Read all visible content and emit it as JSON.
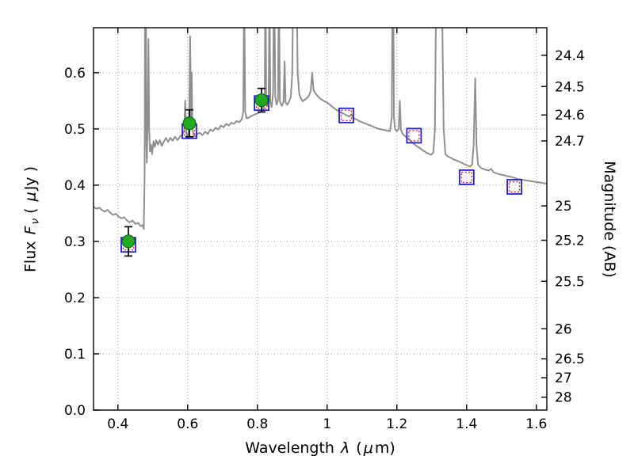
{
  "figure": {
    "xlabel_parts": {
      "t1": "Wavelength ",
      "lambda": "λ",
      "t2": " (",
      "mu": "μ",
      "t3": "m)"
    },
    "ylabel_left_parts": {
      "t1": "Flux ",
      "F": "F",
      "nu": "ν",
      "t2": " ( ",
      "mu": "μ",
      "t3": "Jy )"
    },
    "ylabel_right": "Magnitude (AB)"
  },
  "chart_data": {
    "type": "line",
    "title": "",
    "xlabel": "Wavelength λ (μm)",
    "ylabel": "Flux Fν ( μJy )",
    "ylabel_right": "Magnitude (AB)",
    "xlim": [
      0.33,
      1.63
    ],
    "ylim": [
      0.0,
      0.68
    ],
    "x_ticks": [
      0.4,
      0.6,
      0.8,
      1.0,
      1.2,
      1.4,
      1.6
    ],
    "x_tick_labels": [
      "0.4",
      "0.6",
      "0.8",
      "1",
      "1.2",
      "1.4",
      "1.6"
    ],
    "y_ticks": [
      0.0,
      0.1,
      0.2,
      0.3,
      0.4,
      0.5,
      0.6
    ],
    "y_tick_labels": [
      "0.0",
      "0.1",
      "0.2",
      "0.3",
      "0.4",
      "0.5",
      "0.6"
    ],
    "grid": true,
    "legend": "none",
    "right_axis": {
      "label": "Magnitude (AB)",
      "ab_zeropoint_ujy": 23.9,
      "tick_values": [
        24.4,
        24.5,
        24.6,
        24.7,
        25,
        25.2,
        25.5,
        26,
        26.5,
        27,
        28
      ],
      "tick_labels": [
        "24.4",
        "24.5",
        "24.6",
        "24.7",
        "25",
        "25.2",
        "25.5",
        "26",
        "26.5",
        "27",
        "28"
      ]
    },
    "colors": {
      "spectrum": "#8f8f8f",
      "observed": "#1faa1f",
      "observed_edge": "#0a5c0a",
      "errorbar": "#000000",
      "square_outer": "#2222cc",
      "square_inner": "#e03333",
      "grid": "#9a9a9a",
      "axis": "#000000"
    },
    "series": [
      {
        "name": "galaxy template spectrum",
        "type": "line",
        "points": [
          [
            0.33,
            0.362
          ],
          [
            0.338,
            0.358
          ],
          [
            0.346,
            0.36
          ],
          [
            0.354,
            0.356
          ],
          [
            0.362,
            0.353
          ],
          [
            0.37,
            0.356
          ],
          [
            0.378,
            0.351
          ],
          [
            0.386,
            0.347
          ],
          [
            0.394,
            0.349
          ],
          [
            0.402,
            0.344
          ],
          [
            0.41,
            0.341
          ],
          [
            0.418,
            0.343
          ],
          [
            0.426,
            0.337
          ],
          [
            0.434,
            0.334
          ],
          [
            0.442,
            0.337
          ],
          [
            0.45,
            0.331
          ],
          [
            0.458,
            0.333
          ],
          [
            0.465,
            0.327
          ],
          [
            0.47,
            0.329
          ],
          [
            0.474,
            0.322
          ],
          [
            0.4765,
            0.42
          ],
          [
            0.478,
            0.78
          ],
          [
            0.48,
            0.78
          ],
          [
            0.4815,
            0.47
          ],
          [
            0.483,
            0.44
          ],
          [
            0.4855,
            0.52
          ],
          [
            0.4875,
            0.66
          ],
          [
            0.4895,
            0.5
          ],
          [
            0.492,
            0.46
          ],
          [
            0.495,
            0.472
          ],
          [
            0.498,
            0.455
          ],
          [
            0.502,
            0.478
          ],
          [
            0.506,
            0.468
          ],
          [
            0.51,
            0.48
          ],
          [
            0.515,
            0.472
          ],
          [
            0.52,
            0.48
          ],
          [
            0.526,
            0.47
          ],
          [
            0.532,
            0.478
          ],
          [
            0.538,
            0.484
          ],
          [
            0.544,
            0.477
          ],
          [
            0.55,
            0.484
          ],
          [
            0.557,
            0.479
          ],
          [
            0.564,
            0.486
          ],
          [
            0.571,
            0.48
          ],
          [
            0.578,
            0.486
          ],
          [
            0.585,
            0.49
          ],
          [
            0.59,
            0.497
          ],
          [
            0.593,
            0.55
          ],
          [
            0.596,
            0.492
          ],
          [
            0.6,
            0.488
          ],
          [
            0.604,
            0.5
          ],
          [
            0.607,
            0.665
          ],
          [
            0.6095,
            0.52
          ],
          [
            0.6115,
            0.6
          ],
          [
            0.6135,
            0.5
          ],
          [
            0.617,
            0.49
          ],
          [
            0.622,
            0.487
          ],
          [
            0.628,
            0.491
          ],
          [
            0.635,
            0.493
          ],
          [
            0.642,
            0.489
          ],
          [
            0.65,
            0.495
          ],
          [
            0.658,
            0.491
          ],
          [
            0.665,
            0.499
          ],
          [
            0.672,
            0.496
          ],
          [
            0.68,
            0.502
          ],
          [
            0.688,
            0.499
          ],
          [
            0.695,
            0.506
          ],
          [
            0.703,
            0.503
          ],
          [
            0.71,
            0.509
          ],
          [
            0.718,
            0.506
          ],
          [
            0.725,
            0.511
          ],
          [
            0.733,
            0.509
          ],
          [
            0.74,
            0.514
          ],
          [
            0.748,
            0.512
          ],
          [
            0.755,
            0.517
          ],
          [
            0.7595,
            0.53
          ],
          [
            0.762,
            0.76
          ],
          [
            0.765,
            0.53
          ],
          [
            0.769,
            0.519
          ],
          [
            0.776,
            0.52
          ],
          [
            0.783,
            0.523
          ],
          [
            0.79,
            0.525
          ],
          [
            0.798,
            0.527
          ],
          [
            0.805,
            0.529
          ],
          [
            0.812,
            0.531
          ],
          [
            0.818,
            0.534
          ],
          [
            0.8212,
            0.56
          ],
          [
            0.823,
            0.82
          ],
          [
            0.8253,
            0.56
          ],
          [
            0.828,
            0.541
          ],
          [
            0.832,
            0.548
          ],
          [
            0.8346,
            0.74
          ],
          [
            0.837,
            0.548
          ],
          [
            0.841,
            0.539
          ],
          [
            0.845,
            0.565
          ],
          [
            0.848,
            0.82
          ],
          [
            0.8512,
            0.558
          ],
          [
            0.855,
            0.543
          ],
          [
            0.859,
            0.551
          ],
          [
            0.8617,
            0.77
          ],
          [
            0.8645,
            0.549
          ],
          [
            0.87,
            0.541
          ],
          [
            0.875,
            0.548
          ],
          [
            0.878,
            0.62
          ],
          [
            0.881,
            0.547
          ],
          [
            0.886,
            0.543
          ],
          [
            0.891,
            0.549
          ],
          [
            0.896,
            0.557
          ],
          [
            0.9,
            0.6
          ],
          [
            0.9045,
            0.87
          ],
          [
            0.908,
            0.7
          ],
          [
            0.9115,
            0.82
          ],
          [
            0.9155,
            0.6
          ],
          [
            0.92,
            0.562
          ],
          [
            0.925,
            0.554
          ],
          [
            0.93,
            0.549
          ],
          [
            0.936,
            0.552
          ],
          [
            0.942,
            0.555
          ],
          [
            0.948,
            0.559
          ],
          [
            0.953,
            0.568
          ],
          [
            0.957,
            0.6
          ],
          [
            0.961,
            0.569
          ],
          [
            0.966,
            0.564
          ],
          [
            0.972,
            0.559
          ],
          [
            0.978,
            0.555
          ],
          [
            0.985,
            0.552
          ],
          [
            0.992,
            0.549
          ],
          [
            1.0,
            0.547
          ],
          [
            1.008,
            0.543
          ],
          [
            1.016,
            0.539
          ],
          [
            1.024,
            0.535
          ],
          [
            1.032,
            0.532
          ],
          [
            1.04,
            0.529
          ],
          [
            1.048,
            0.527
          ],
          [
            1.056,
            0.524
          ],
          [
            1.064,
            0.522
          ],
          [
            1.07,
            0.526
          ],
          [
            1.076,
            0.519
          ],
          [
            1.084,
            0.517
          ],
          [
            1.092,
            0.514
          ],
          [
            1.1,
            0.512
          ],
          [
            1.108,
            0.51
          ],
          [
            1.116,
            0.508
          ],
          [
            1.124,
            0.506
          ],
          [
            1.132,
            0.504
          ],
          [
            1.14,
            0.502
          ],
          [
            1.148,
            0.5
          ],
          [
            1.156,
            0.499
          ],
          [
            1.164,
            0.498
          ],
          [
            1.172,
            0.497
          ],
          [
            1.18,
            0.496
          ],
          [
            1.1855,
            0.52
          ],
          [
            1.1885,
            0.9
          ],
          [
            1.1915,
            0.52
          ],
          [
            1.195,
            0.499
          ],
          [
            1.2,
            0.496
          ],
          [
            1.2055,
            0.5
          ],
          [
            1.2085,
            0.55
          ],
          [
            1.2115,
            0.498
          ],
          [
            1.218,
            0.49
          ],
          [
            1.226,
            0.486
          ],
          [
            1.234,
            0.482
          ],
          [
            1.242,
            0.477
          ],
          [
            1.25,
            0.473
          ],
          [
            1.258,
            0.469
          ],
          [
            1.266,
            0.466
          ],
          [
            1.274,
            0.462
          ],
          [
            1.282,
            0.459
          ],
          [
            1.29,
            0.456
          ],
          [
            1.298,
            0.454
          ],
          [
            1.3045,
            0.458
          ],
          [
            1.309,
            0.5
          ],
          [
            1.314,
            0.85
          ],
          [
            1.319,
            1.0
          ],
          [
            1.325,
            1.0
          ],
          [
            1.33,
            0.7
          ],
          [
            1.334,
            0.5
          ],
          [
            1.339,
            0.455
          ],
          [
            1.346,
            0.451
          ],
          [
            1.354,
            0.449
          ],
          [
            1.362,
            0.446
          ],
          [
            1.37,
            0.444
          ],
          [
            1.378,
            0.442
          ],
          [
            1.386,
            0.44
          ],
          [
            1.394,
            0.437
          ],
          [
            1.402,
            0.435
          ],
          [
            1.41,
            0.433
          ],
          [
            1.416,
            0.437
          ],
          [
            1.42,
            0.47
          ],
          [
            1.4245,
            0.59
          ],
          [
            1.4285,
            0.47
          ],
          [
            1.4325,
            0.437
          ],
          [
            1.44,
            0.431
          ],
          [
            1.448,
            0.429
          ],
          [
            1.456,
            0.427
          ],
          [
            1.463,
            0.426
          ],
          [
            1.47,
            0.429
          ],
          [
            1.477,
            0.423
          ],
          [
            1.486,
            0.421
          ],
          [
            1.496,
            0.419
          ],
          [
            1.506,
            0.418
          ],
          [
            1.516,
            0.416
          ],
          [
            1.526,
            0.415
          ],
          [
            1.536,
            0.413
          ],
          [
            1.546,
            0.411
          ],
          [
            1.556,
            0.41
          ],
          [
            1.566,
            0.409
          ],
          [
            1.576,
            0.408
          ],
          [
            1.586,
            0.407
          ],
          [
            1.596,
            0.406
          ],
          [
            1.606,
            0.405
          ],
          [
            1.616,
            0.404
          ],
          [
            1.626,
            0.403
          ],
          [
            1.63,
            0.403
          ]
        ]
      },
      {
        "name": "model photometry (open squares)",
        "type": "open-squares",
        "points": [
          [
            0.43,
            0.294
          ],
          [
            0.605,
            0.496
          ],
          [
            0.812,
            0.546
          ],
          [
            1.055,
            0.524
          ],
          [
            1.249,
            0.488
          ],
          [
            1.4,
            0.414
          ],
          [
            1.537,
            0.397
          ]
        ]
      },
      {
        "name": "observed photometry (filled circles with error bars)",
        "type": "filled-circles-with-errorbars",
        "points": [
          [
            0.43,
            0.3,
            0.026
          ],
          [
            0.605,
            0.51,
            0.024
          ],
          [
            0.812,
            0.551,
            0.021
          ]
        ]
      }
    ]
  }
}
